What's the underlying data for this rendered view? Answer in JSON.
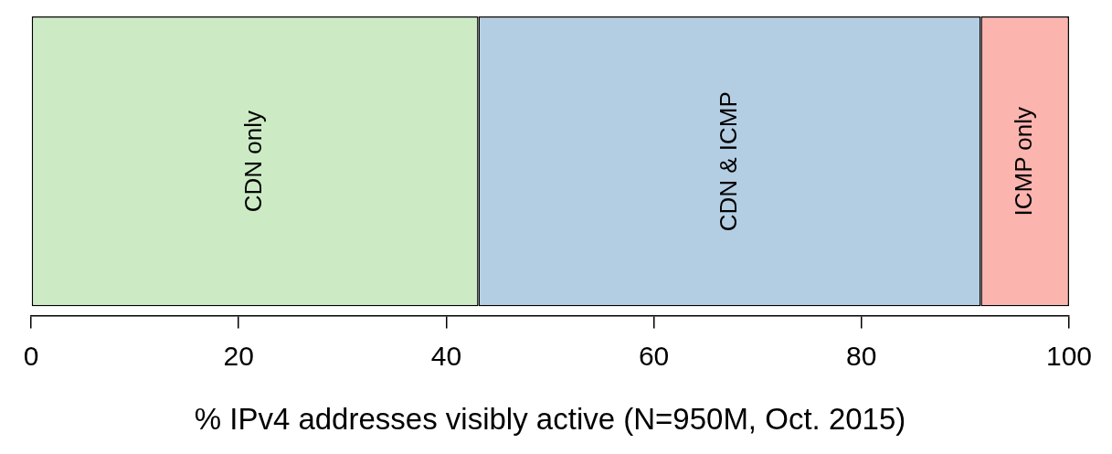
{
  "chart_data": {
    "type": "bar",
    "orientation": "horizontal",
    "stacked": true,
    "categories": [
      null
    ],
    "series": [
      {
        "name": "CDN only",
        "color": "#ccebc5",
        "values": [
          43.1
        ]
      },
      {
        "name": "CDN & ICMP",
        "color": "#b3cde3",
        "values": [
          48.4
        ]
      },
      {
        "name": "ICMP only",
        "color": "#fbb4ae",
        "values": [
          8.5
        ]
      }
    ],
    "xlabel": "% IPv4 addresses visibly active (N=950M, Oct. 2015)",
    "xlim": [
      0,
      100
    ],
    "xticks": [
      0,
      20,
      40,
      60,
      80,
      100
    ],
    "legend": false,
    "grid": false
  }
}
